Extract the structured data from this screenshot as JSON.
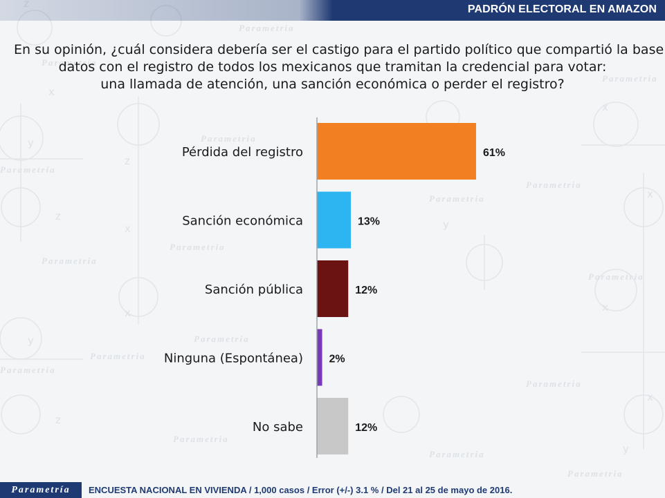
{
  "header": {
    "title": "PADRÓN ELECTORAL EN AMAZON"
  },
  "question": {
    "lines": [
      "En su opinión, ¿cuál considera debería ser el castigo para el partido político que compartió la base de",
      "datos con el registro de todos los mexicanos que tramitan la credencial para votar:",
      "una llamada de atención, una sanción económica o perder el registro?"
    ]
  },
  "watermark": {
    "brand": "Parametria"
  },
  "chart_data": {
    "type": "bar",
    "orientation": "horizontal",
    "categories": [
      "Pérdida del registro",
      "Sanción económica",
      "Sanción pública",
      "Ninguna (Espontánea)",
      "No sabe"
    ],
    "values": [
      61,
      13,
      12,
      2,
      12
    ],
    "value_labels": [
      "61%",
      "13%",
      "12%",
      "2%",
      "12%"
    ],
    "colors": [
      "#f28023",
      "#2cb5f0",
      "#6b1212",
      "#7a3ab8",
      "#c8c8c8"
    ],
    "xlim": [
      0,
      100
    ],
    "unit": "%"
  },
  "footer": {
    "brand": "Parametría",
    "note": "ENCUESTA NACIONAL EN VIVIENDA / 1,000 casos / Error (+/-) 3.1 % / Del 21 al 25 de mayo de 2016."
  }
}
